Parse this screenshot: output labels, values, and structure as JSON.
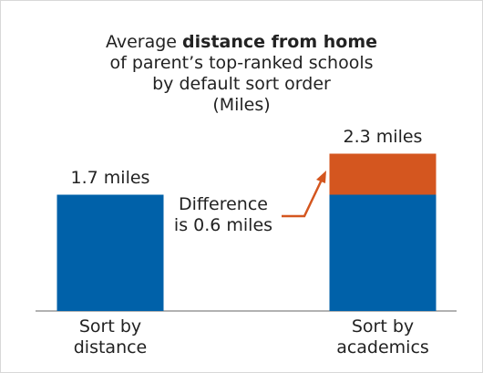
{
  "chart_data": {
    "type": "bar",
    "title": {
      "prefix": "Average",
      "bold": "distance from home",
      "rest": "of parent’s top-ranked schools\nby default sort order\n(Miles)"
    },
    "categories": [
      "Sort by\ndistance",
      "Sort by\nacademics"
    ],
    "values": [
      1.7,
      2.3
    ],
    "value_labels": [
      "1.7 miles",
      "2.3 miles"
    ],
    "series": [
      {
        "color": "#0061a9",
        "values": [
          1.7,
          1.7
        ]
      },
      {
        "color": "#d4561f",
        "values": [
          null,
          0.6
        ]
      }
    ],
    "annotation": "Difference\nis 0.6 miles",
    "ylim": [
      0,
      2.5
    ]
  }
}
